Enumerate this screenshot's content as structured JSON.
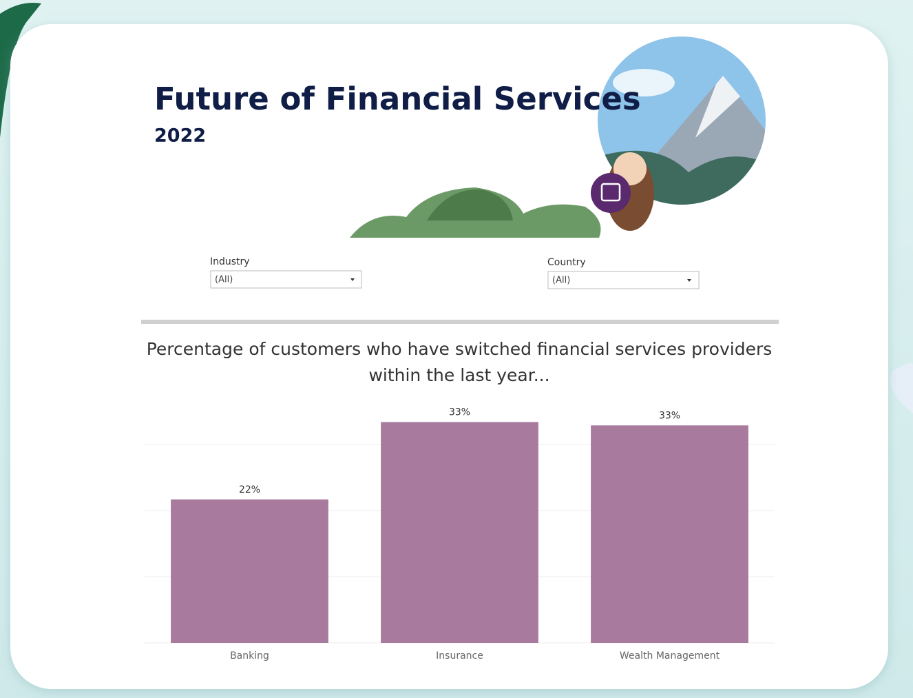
{
  "header": {
    "title": "Future of Financial Services",
    "subtitle": "2022"
  },
  "filters": [
    {
      "label": "Industry",
      "value": "(All)"
    },
    {
      "label": "Country",
      "value": "(All)"
    }
  ],
  "chart_data": {
    "type": "bar",
    "title": "Percentage of customers who have switched financial services providers within the last year...",
    "categories": [
      "Banking",
      "Insurance",
      "Wealth Management"
    ],
    "values": [
      21.7,
      33.4,
      32.9
    ],
    "value_labels": [
      "22%",
      "33%",
      "33%"
    ],
    "color": "#a87a9e",
    "ylim": [
      0,
      37
    ],
    "yticks": [
      0,
      10,
      20,
      30
    ],
    "grid": true
  }
}
